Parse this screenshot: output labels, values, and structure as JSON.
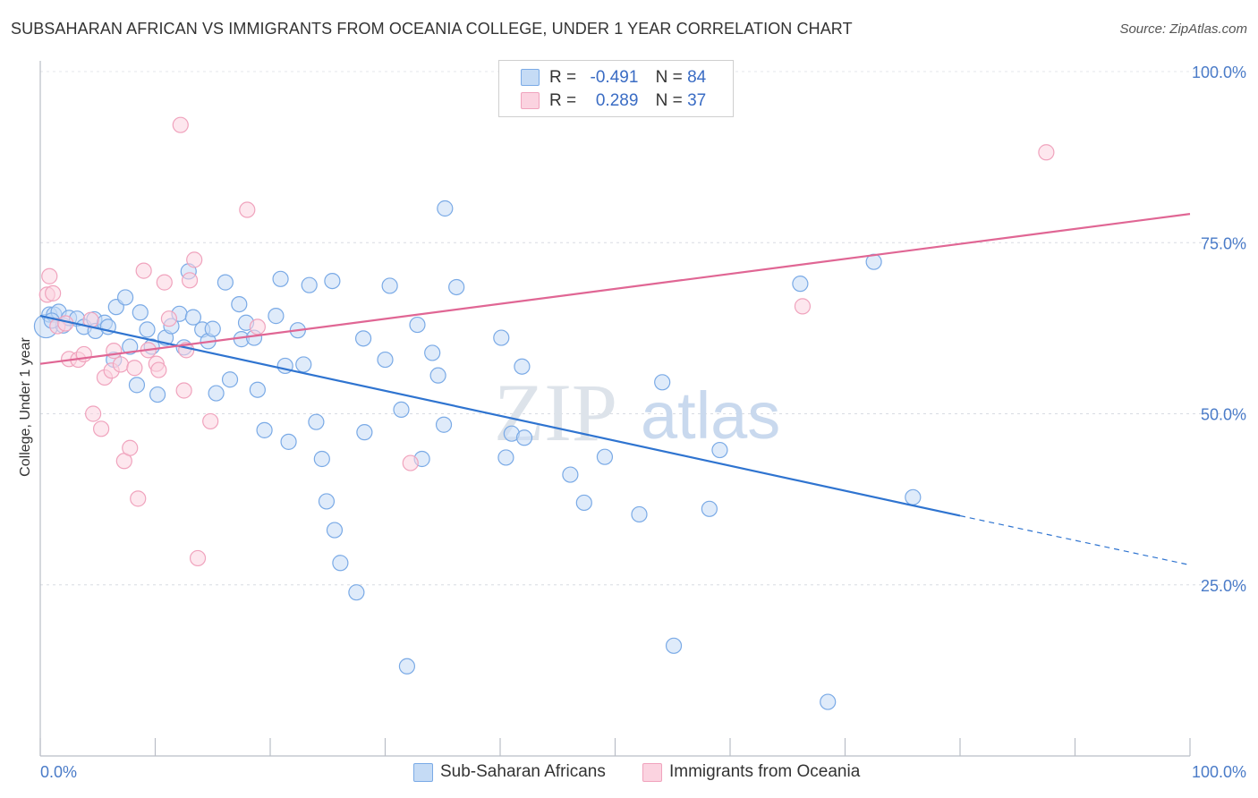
{
  "header": {
    "title": "SUBSAHARAN AFRICAN VS IMMIGRANTS FROM OCEANIA COLLEGE, UNDER 1 YEAR CORRELATION CHART",
    "source": "Source: ZipAtlas.com"
  },
  "watermark": {
    "zip": "ZIP",
    "atlas": "atlas"
  },
  "legend": {
    "series": [
      {
        "r_label": "R =",
        "r_value": "-0.491",
        "n_label": "N =",
        "n_value": "84"
      },
      {
        "r_label": "R =",
        "r_value": "0.289",
        "n_label": "N =",
        "n_value": "37"
      }
    ]
  },
  "bottom_legend": {
    "items": [
      {
        "label": "Sub-Saharan Africans"
      },
      {
        "label": "Immigrants from Oceania"
      }
    ]
  },
  "chart_data": {
    "type": "scatter",
    "title": "SUBSAHARAN AFRICAN VS IMMIGRANTS FROM OCEANIA COLLEGE, UNDER 1 YEAR CORRELATION CHART",
    "xlabel": "",
    "ylabel": "College, Under 1 year",
    "xlim": [
      0,
      100
    ],
    "ylim": [
      0,
      100
    ],
    "x_tick_labels": [
      "0.0%",
      "100.0%"
    ],
    "y_tick_labels": [
      "100.0%",
      "75.0%",
      "50.0%",
      "25.0%"
    ],
    "y_ticks": [
      100,
      75,
      50,
      25
    ],
    "x_ticks": [
      0,
      10,
      20,
      30,
      40,
      50,
      60,
      70,
      80,
      90,
      100
    ],
    "grid": true,
    "legend_position": "top-center",
    "series": [
      {
        "name": "Sub-Saharan Africans",
        "color": "#7aaae6",
        "fill": "#c5dbf5",
        "trend_color": "#2f74d0",
        "r": -0.491,
        "n": 84,
        "trend": {
          "x_start": 0,
          "y_start": 64.3,
          "x_solid_end": 80,
          "y_solid_end": 35.1,
          "x_end": 100,
          "y_end": 27.9
        },
        "points": [
          [
            0.5,
            62.8
          ],
          [
            0.8,
            64.5
          ],
          [
            1.2,
            64.5
          ],
          [
            1.6,
            64.9
          ],
          [
            2.0,
            62.9
          ],
          [
            2.5,
            64.0
          ],
          [
            3.2,
            63.9
          ],
          [
            3.8,
            62.7
          ],
          [
            4.7,
            63.8
          ],
          [
            4.8,
            62.1
          ],
          [
            5.6,
            63.3
          ],
          [
            5.9,
            62.7
          ],
          [
            6.4,
            57.9
          ],
          [
            6.6,
            65.6
          ],
          [
            7.4,
            67.0
          ],
          [
            7.8,
            59.8
          ],
          [
            8.4,
            54.2
          ],
          [
            8.7,
            64.8
          ],
          [
            9.3,
            62.3
          ],
          [
            9.7,
            59.8
          ],
          [
            10.2,
            52.8
          ],
          [
            10.9,
            61.1
          ],
          [
            11.4,
            62.8
          ],
          [
            12.1,
            64.6
          ],
          [
            12.5,
            59.7
          ],
          [
            12.9,
            70.8
          ],
          [
            13.3,
            64.1
          ],
          [
            14.1,
            62.3
          ],
          [
            14.6,
            60.6
          ],
          [
            15.0,
            62.4
          ],
          [
            15.3,
            53.0
          ],
          [
            16.1,
            69.2
          ],
          [
            16.5,
            55.0
          ],
          [
            17.3,
            66.0
          ],
          [
            17.5,
            60.9
          ],
          [
            17.9,
            63.3
          ],
          [
            18.6,
            61.1
          ],
          [
            18.9,
            53.5
          ],
          [
            19.5,
            47.6
          ],
          [
            20.5,
            64.3
          ],
          [
            20.9,
            69.7
          ],
          [
            21.3,
            57.0
          ],
          [
            21.6,
            45.9
          ],
          [
            22.4,
            62.2
          ],
          [
            22.9,
            57.2
          ],
          [
            23.4,
            68.8
          ],
          [
            24.0,
            48.8
          ],
          [
            24.5,
            43.4
          ],
          [
            24.9,
            37.2
          ],
          [
            25.4,
            69.4
          ],
          [
            25.6,
            33.0
          ],
          [
            26.1,
            28.2
          ],
          [
            27.5,
            23.9
          ],
          [
            28.1,
            61.0
          ],
          [
            28.2,
            47.3
          ],
          [
            30.0,
            57.9
          ],
          [
            30.4,
            68.7
          ],
          [
            31.4,
            50.6
          ],
          [
            31.9,
            13.1
          ],
          [
            32.8,
            63.0
          ],
          [
            33.2,
            43.4
          ],
          [
            34.1,
            58.9
          ],
          [
            34.6,
            55.6
          ],
          [
            35.1,
            48.4
          ],
          [
            35.2,
            80.0
          ],
          [
            36.2,
            68.5
          ],
          [
            40.1,
            61.1
          ],
          [
            40.5,
            43.6
          ],
          [
            41.9,
            56.9
          ],
          [
            41.0,
            47.1
          ],
          [
            42.1,
            46.5
          ],
          [
            46.1,
            41.1
          ],
          [
            47.3,
            37.0
          ],
          [
            49.1,
            43.7
          ],
          [
            52.1,
            35.3
          ],
          [
            54.1,
            54.6
          ],
          [
            55.1,
            16.1
          ],
          [
            58.2,
            36.1
          ],
          [
            59.1,
            44.7
          ],
          [
            66.1,
            69.0
          ],
          [
            68.5,
            7.9
          ],
          [
            72.5,
            72.2
          ],
          [
            75.9,
            37.8
          ],
          [
            1.0,
            63.6
          ]
        ]
      },
      {
        "name": "Immigrants from Oceania",
        "color": "#f0a3bd",
        "fill": "#fbd3e0",
        "trend_color": "#e06694",
        "r": 0.289,
        "n": 37,
        "trend": {
          "x_start": 0,
          "y_start": 57.3,
          "x_end": 100,
          "y_end": 79.2
        },
        "points": [
          [
            0.6,
            67.4
          ],
          [
            0.8,
            70.1
          ],
          [
            1.1,
            67.6
          ],
          [
            1.5,
            62.8
          ],
          [
            2.2,
            63.2
          ],
          [
            2.5,
            58.0
          ],
          [
            3.3,
            57.9
          ],
          [
            3.8,
            58.7
          ],
          [
            4.4,
            63.7
          ],
          [
            4.6,
            50.0
          ],
          [
            5.3,
            47.8
          ],
          [
            5.6,
            55.3
          ],
          [
            6.2,
            56.3
          ],
          [
            6.4,
            59.2
          ],
          [
            7.0,
            57.2
          ],
          [
            7.3,
            43.1
          ],
          [
            7.8,
            45.0
          ],
          [
            8.2,
            56.7
          ],
          [
            8.5,
            37.6
          ],
          [
            9.0,
            70.9
          ],
          [
            9.4,
            59.3
          ],
          [
            10.1,
            57.3
          ],
          [
            10.3,
            56.4
          ],
          [
            10.8,
            69.2
          ],
          [
            11.2,
            63.9
          ],
          [
            12.2,
            92.2
          ],
          [
            12.5,
            53.4
          ],
          [
            13.0,
            69.5
          ],
          [
            13.4,
            72.5
          ],
          [
            13.7,
            28.9
          ],
          [
            14.8,
            48.9
          ],
          [
            18.0,
            79.8
          ],
          [
            18.9,
            62.7
          ],
          [
            32.2,
            42.8
          ],
          [
            66.3,
            65.7
          ],
          [
            87.5,
            88.2
          ],
          [
            12.7,
            59.3
          ]
        ]
      }
    ]
  }
}
